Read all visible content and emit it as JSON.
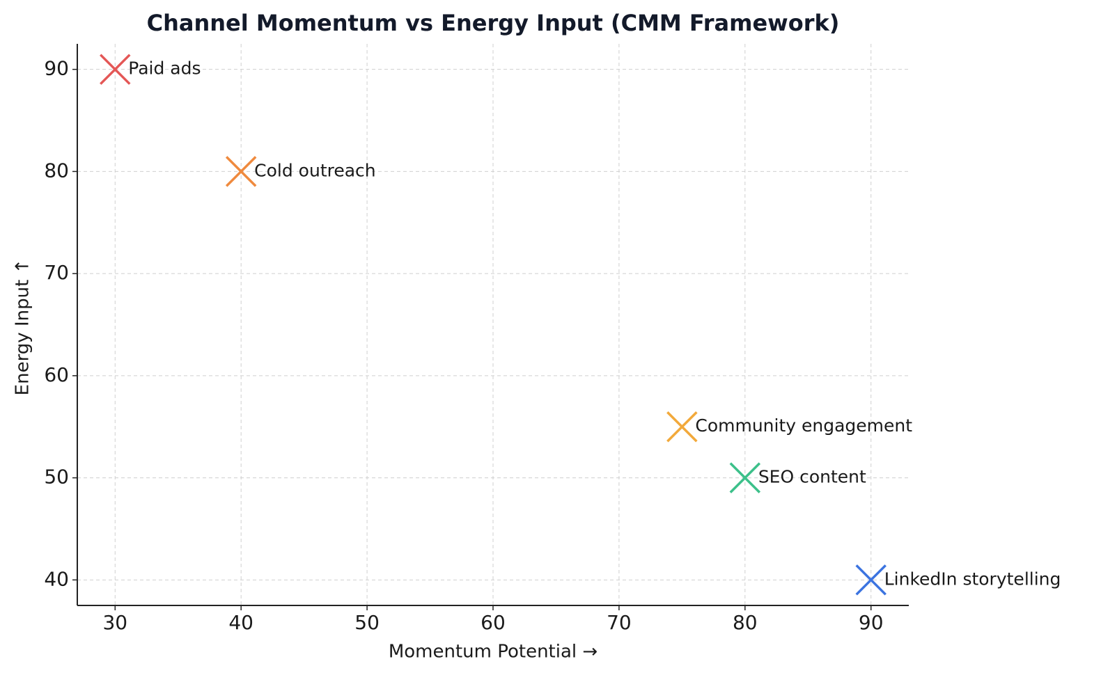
{
  "chart_data": {
    "type": "scatter",
    "title": "Channel Momentum vs Energy Input (CMM Framework)",
    "x_label": "Momentum Potential →",
    "y_label": "Energy Input ↑",
    "points": [
      {
        "label": "Paid ads",
        "x": 30,
        "y": 90,
        "color": "#e45756"
      },
      {
        "label": "Cold outreach",
        "x": 40,
        "y": 80,
        "color": "#ef8a3e"
      },
      {
        "label": "Community engagement",
        "x": 75,
        "y": 55,
        "color": "#f2a93b"
      },
      {
        "label": "SEO content",
        "x": 80,
        "y": 50,
        "color": "#3cc08a"
      },
      {
        "label": "LinkedIn storytelling",
        "x": 90,
        "y": 40,
        "color": "#3b73e0"
      }
    ],
    "xlim": [
      27,
      93
    ],
    "ylim": [
      37.5,
      92.5
    ],
    "xticks": [
      30,
      40,
      50,
      60,
      70,
      80,
      90
    ],
    "yticks": [
      40,
      50,
      60,
      70,
      80,
      90
    ],
    "grid": true
  }
}
